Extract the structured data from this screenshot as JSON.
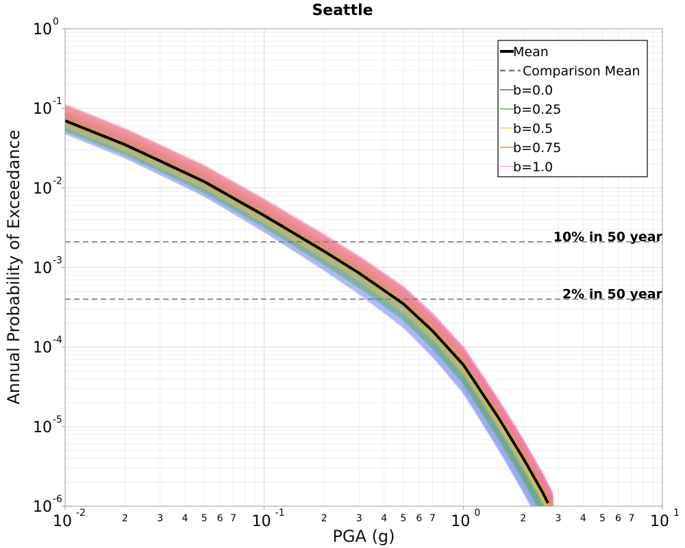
{
  "chart_data": {
    "type": "line",
    "title": "Seattle",
    "xlabel": "PGA (g)",
    "ylabel": "Annual Probability of Exceedance",
    "xscale": "log",
    "yscale": "log",
    "xlim": [
      0.01,
      10
    ],
    "ylim": [
      1e-06,
      1
    ],
    "grid": true,
    "legend_position": "top-right",
    "x_major_ticks": [
      {
        "base": "10",
        "exp": "-2",
        "value": 0.01
      },
      {
        "base": "10",
        "exp": "-1",
        "value": 0.1
      },
      {
        "base": "10",
        "exp": "0",
        "value": 1
      },
      {
        "base": "10",
        "exp": "1",
        "value": 10
      }
    ],
    "x_minor_tick_labels": [
      "2",
      "3",
      "4",
      "5",
      "6",
      "7"
    ],
    "y_major_ticks": [
      {
        "base": "10",
        "exp": "0",
        "value": 1
      },
      {
        "base": "10",
        "exp": "-1",
        "value": 0.1
      },
      {
        "base": "10",
        "exp": "-2",
        "value": 0.01
      },
      {
        "base": "10",
        "exp": "-3",
        "value": 0.001
      },
      {
        "base": "10",
        "exp": "-4",
        "value": 0.0001
      },
      {
        "base": "10",
        "exp": "-5",
        "value": 1e-05
      },
      {
        "base": "10",
        "exp": "-6",
        "value": 1e-06
      }
    ],
    "reference_lines": [
      {
        "label": "10% in 50 year",
        "y": 0.0021
      },
      {
        "label": "2% in 50 year",
        "y": 0.0004
      }
    ],
    "mean_curve": {
      "name": "Mean",
      "color": "#000000",
      "x": [
        0.01,
        0.02,
        0.05,
        0.1,
        0.2,
        0.3,
        0.5,
        0.7,
        1.0,
        1.5,
        2.0,
        2.5,
        2.8
      ],
      "y": [
        0.07,
        0.035,
        0.012,
        0.0045,
        0.0016,
        0.00085,
        0.00035,
        0.00016,
        6e-05,
        1.3e-05,
        4e-06,
        1.5e-06,
        8.5e-07
      ]
    },
    "comparison_mean": {
      "name": "Comparison Mean",
      "color": "#777777"
    },
    "series": [
      {
        "name": "b=0.0",
        "color": "#2440c8",
        "band_color": "#5a70f0"
      },
      {
        "name": "b=0.25",
        "color": "#3c9a3c",
        "band_color": "#5aaa5a"
      },
      {
        "name": "b=0.5",
        "color": "#e8c840",
        "band_color": "#e0c050"
      },
      {
        "name": "b=0.75",
        "color": "#e07828",
        "band_color": "#e08a3a"
      },
      {
        "name": "b=1.0",
        "color": "#e89ae0",
        "band_color": "#f07aa8"
      }
    ]
  }
}
